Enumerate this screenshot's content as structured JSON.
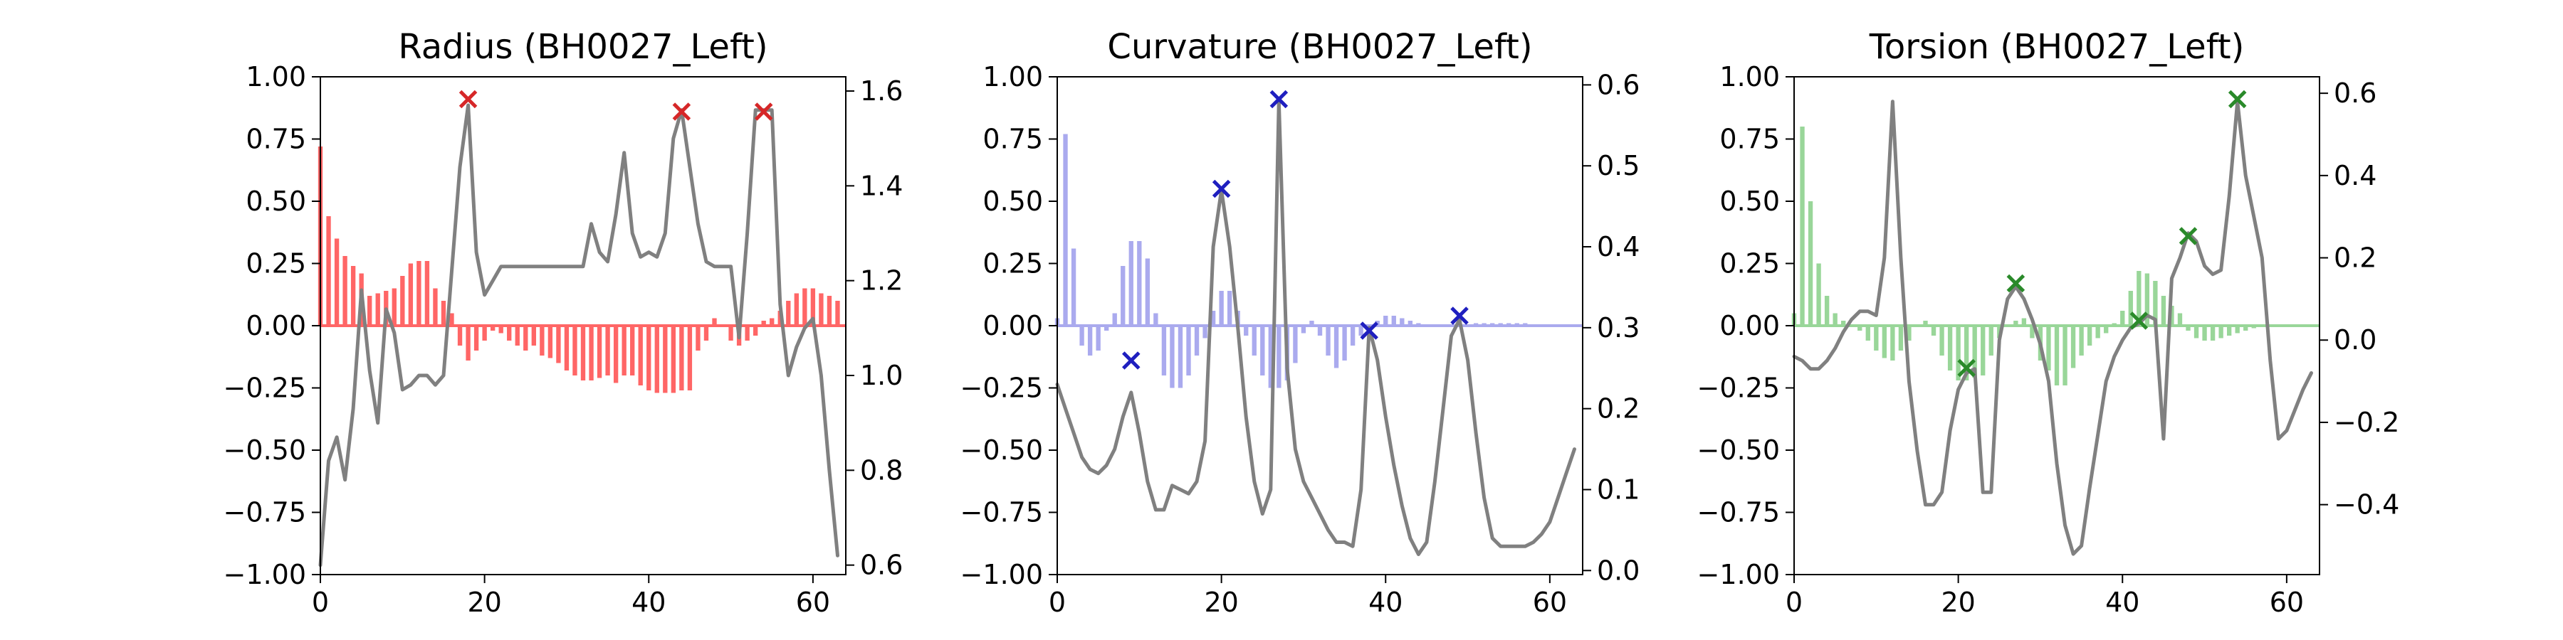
{
  "chart_data": [
    {
      "type": "bar+line",
      "title": "Radius (BH0027_Left)",
      "bar_color": "#ff6666",
      "marker_color": "#d62728",
      "line_color": "#808080",
      "xlim": [
        0,
        64
      ],
      "ylim_left": [
        -1.0,
        1.0
      ],
      "ylim_right": [
        0.58,
        1.63
      ],
      "x_ticks": [
        0,
        20,
        40,
        60
      ],
      "y_left_ticks": [
        -1.0,
        -0.75,
        -0.5,
        -0.25,
        0.0,
        0.25,
        0.5,
        0.75,
        1.0
      ],
      "y_left_tick_labels": [
        "−1.00",
        "−0.75",
        "−0.50",
        "−0.25",
        "0.00",
        "0.25",
        "0.50",
        "0.75",
        "1.00"
      ],
      "y_right_ticks": [
        0.6,
        0.8,
        1.0,
        1.2,
        1.4,
        1.6
      ],
      "y_right_tick_labels": [
        "0.6",
        "0.8",
        "1.0",
        "1.2",
        "1.4",
        "1.6"
      ],
      "bars": [
        0.72,
        0.44,
        0.35,
        0.28,
        0.24,
        0.21,
        0.12,
        0.13,
        0.14,
        0.15,
        0.2,
        0.25,
        0.26,
        0.26,
        0.15,
        0.1,
        0.05,
        -0.08,
        -0.14,
        -0.1,
        -0.06,
        -0.02,
        -0.03,
        -0.06,
        -0.08,
        -0.1,
        -0.08,
        -0.12,
        -0.13,
        -0.15,
        -0.18,
        -0.2,
        -0.22,
        -0.22,
        -0.21,
        -0.2,
        -0.23,
        -0.2,
        -0.2,
        -0.24,
        -0.26,
        -0.27,
        -0.27,
        -0.27,
        -0.26,
        -0.26,
        -0.1,
        -0.06,
        0.03,
        0.0,
        -0.06,
        -0.08,
        -0.06,
        -0.04,
        0.02,
        0.03,
        0.06,
        0.1,
        0.13,
        0.15,
        0.15,
        0.13,
        0.12,
        0.1
      ],
      "line": [
        0.6,
        0.82,
        0.87,
        0.78,
        0.93,
        1.18,
        1.01,
        0.9,
        1.14,
        1.09,
        0.97,
        0.98,
        1.0,
        1.0,
        0.98,
        1.0,
        1.22,
        1.44,
        1.57,
        1.26,
        1.17,
        1.2,
        1.23,
        1.23,
        1.23,
        1.23,
        1.23,
        1.23,
        1.23,
        1.23,
        1.23,
        1.23,
        1.23,
        1.32,
        1.26,
        1.24,
        1.34,
        1.47,
        1.3,
        1.25,
        1.26,
        1.25,
        1.3,
        1.5,
        1.56,
        1.44,
        1.32,
        1.24,
        1.23,
        1.23,
        1.23,
        1.08,
        1.3,
        1.56,
        1.56,
        1.56,
        1.15,
        1.0,
        1.06,
        1.1,
        1.12,
        1.0,
        0.8,
        0.62
      ],
      "marker_x": [
        18,
        44,
        54
      ],
      "marker_y": [
        0.91,
        0.86,
        0.86
      ]
    },
    {
      "type": "bar+line",
      "title": "Curvature (BH0027_Left)",
      "bar_color": "#aaaaee",
      "marker_color": "#1f1fbf",
      "line_color": "#808080",
      "xlim": [
        0,
        64
      ],
      "ylim_left": [
        -1.0,
        1.0
      ],
      "ylim_right": [
        -0.005,
        0.61
      ],
      "x_ticks": [
        0,
        20,
        40,
        60
      ],
      "y_left_ticks": [
        -1.0,
        -0.75,
        -0.5,
        -0.25,
        0.0,
        0.25,
        0.5,
        0.75,
        1.0
      ],
      "y_left_tick_labels": [
        "−1.00",
        "−0.75",
        "−0.50",
        "−0.25",
        "0.00",
        "0.25",
        "0.50",
        "0.75",
        "1.00"
      ],
      "y_right_ticks": [
        0.0,
        0.1,
        0.2,
        0.3,
        0.4,
        0.5,
        0.6
      ],
      "y_right_tick_labels": [
        "0.0",
        "0.1",
        "0.2",
        "0.3",
        "0.4",
        "0.5",
        "0.6"
      ],
      "bars": [
        0.03,
        0.77,
        0.31,
        -0.08,
        -0.12,
        -0.1,
        -0.02,
        0.05,
        0.24,
        0.34,
        0.34,
        0.27,
        0.05,
        -0.2,
        -0.25,
        -0.25,
        -0.2,
        -0.12,
        -0.05,
        0.06,
        0.14,
        0.14,
        0.06,
        -0.04,
        -0.12,
        -0.2,
        -0.25,
        -0.25,
        -0.22,
        -0.15,
        -0.03,
        0.02,
        -0.04,
        -0.12,
        -0.17,
        -0.14,
        -0.08,
        -0.04,
        -0.02,
        0.02,
        0.04,
        0.04,
        0.03,
        0.02,
        0.01,
        0.0,
        0.0,
        0.0,
        0.0,
        0.0,
        0.0,
        0.01,
        0.01,
        0.01,
        0.01,
        0.01,
        0.01,
        0.01,
        0.0,
        0.0,
        0.0,
        0.0,
        0.0,
        0.0
      ],
      "line": [
        0.23,
        0.2,
        0.17,
        0.14,
        0.125,
        0.12,
        0.13,
        0.15,
        0.19,
        0.22,
        0.17,
        0.11,
        0.075,
        0.075,
        0.105,
        0.1,
        0.095,
        0.11,
        0.16,
        0.4,
        0.47,
        0.4,
        0.3,
        0.19,
        0.11,
        0.07,
        0.1,
        0.58,
        0.25,
        0.15,
        0.11,
        0.09,
        0.07,
        0.05,
        0.035,
        0.035,
        0.03,
        0.1,
        0.3,
        0.26,
        0.19,
        0.13,
        0.08,
        0.04,
        0.02,
        0.035,
        0.11,
        0.2,
        0.29,
        0.31,
        0.26,
        0.17,
        0.09,
        0.04,
        0.03,
        0.03,
        0.03,
        0.03,
        0.035,
        0.045,
        0.06,
        0.09,
        0.12,
        0.15
      ],
      "marker_x": [
        9,
        20,
        27,
        38,
        49
      ],
      "marker_y": [
        -0.14,
        0.55,
        0.91,
        -0.02,
        0.04
      ]
    },
    {
      "type": "bar+line",
      "title": "Torsion (BH0027_Left)",
      "bar_color": "#99d699",
      "marker_color": "#2a8a2a",
      "line_color": "#808080",
      "xlim": [
        0,
        64
      ],
      "ylim_left": [
        -1.0,
        1.0
      ],
      "ylim_right": [
        -0.57,
        0.64
      ],
      "x_ticks": [
        0,
        20,
        40,
        60
      ],
      "y_left_ticks": [
        -1.0,
        -0.75,
        -0.5,
        -0.25,
        0.0,
        0.25,
        0.5,
        0.75,
        1.0
      ],
      "y_left_tick_labels": [
        "−1.00",
        "−0.75",
        "−0.50",
        "−0.25",
        "0.00",
        "0.25",
        "0.50",
        "0.75",
        "1.00"
      ],
      "y_right_ticks": [
        -0.4,
        -0.2,
        0.0,
        0.2,
        0.4,
        0.6
      ],
      "y_right_tick_labels": [
        "−0.4",
        "−0.2",
        "0.0",
        "0.2",
        "0.4",
        "0.6"
      ],
      "bars": [
        0.05,
        0.8,
        0.5,
        0.25,
        0.12,
        0.05,
        0.02,
        0.0,
        -0.02,
        -0.06,
        -0.1,
        -0.13,
        -0.14,
        -0.1,
        -0.06,
        0.0,
        0.02,
        -0.04,
        -0.12,
        -0.18,
        -0.22,
        -0.22,
        -0.21,
        -0.2,
        -0.12,
        -0.05,
        0.0,
        0.02,
        0.03,
        -0.05,
        -0.14,
        -0.18,
        -0.24,
        -0.24,
        -0.17,
        -0.12,
        -0.08,
        -0.05,
        -0.03,
        0.01,
        0.06,
        0.14,
        0.22,
        0.21,
        0.18,
        0.12,
        0.08,
        0.05,
        -0.02,
        -0.05,
        -0.06,
        -0.06,
        -0.05,
        -0.04,
        -0.03,
        -0.02,
        -0.01,
        0.0,
        0.0,
        0.0,
        0.0,
        0.0,
        0.0,
        0.0
      ],
      "line": [
        -0.04,
        -0.05,
        -0.07,
        -0.07,
        -0.05,
        -0.02,
        0.02,
        0.05,
        0.07,
        0.07,
        0.06,
        0.2,
        0.58,
        0.2,
        -0.1,
        -0.27,
        -0.4,
        -0.4,
        -0.37,
        -0.22,
        -0.12,
        -0.08,
        -0.07,
        -0.37,
        -0.37,
        0.0,
        0.1,
        0.13,
        0.1,
        0.05,
        -0.01,
        -0.1,
        -0.3,
        -0.45,
        -0.52,
        -0.5,
        -0.36,
        -0.23,
        -0.1,
        -0.04,
        0.0,
        0.03,
        0.04,
        0.06,
        0.05,
        -0.24,
        0.15,
        0.2,
        0.26,
        0.24,
        0.18,
        0.16,
        0.17,
        0.35,
        0.58,
        0.4,
        0.3,
        0.2,
        -0.05,
        -0.24,
        -0.22,
        -0.17,
        -0.12,
        -0.08
      ],
      "marker_x": [
        21,
        27,
        42,
        48,
        54
      ],
      "marker_y": [
        -0.17,
        0.17,
        0.02,
        0.36,
        0.91
      ]
    }
  ]
}
